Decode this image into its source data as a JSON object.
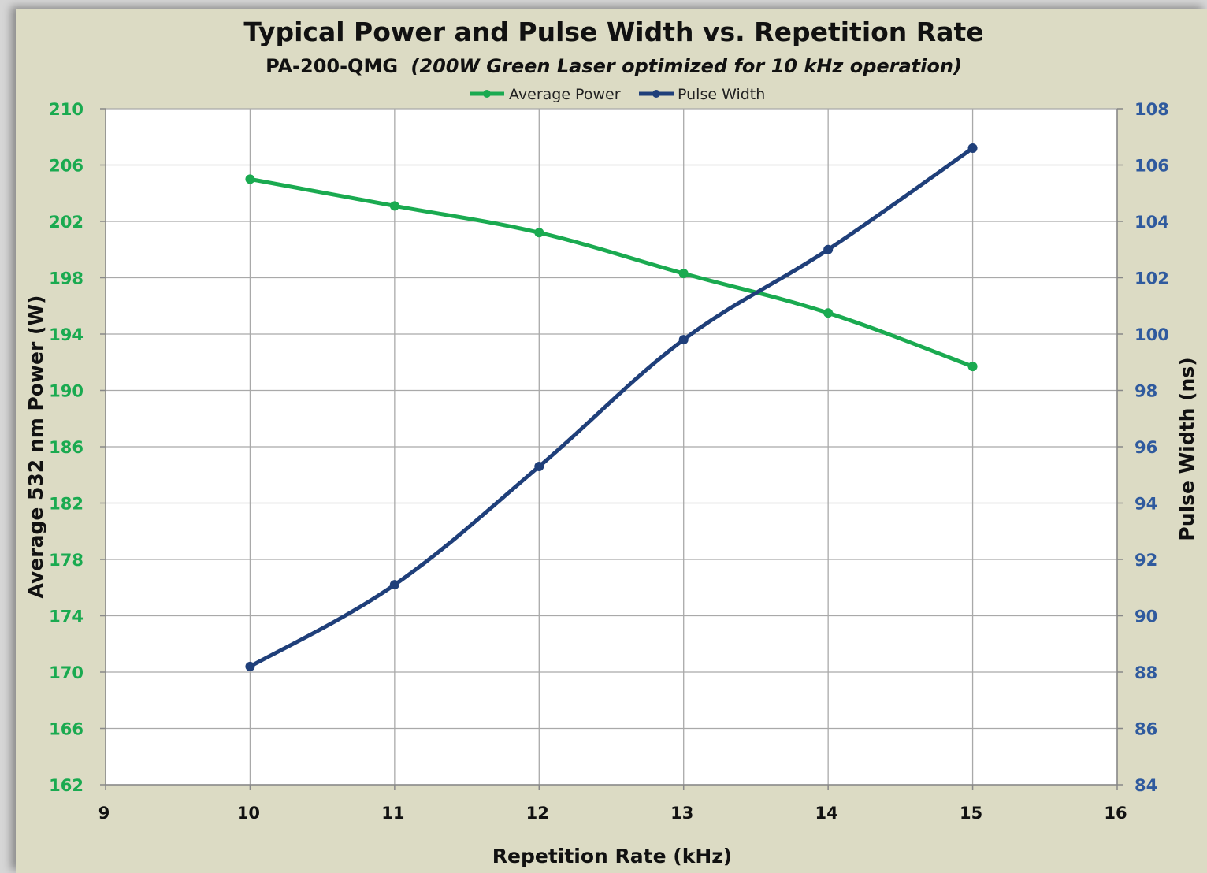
{
  "chart_data": {
    "type": "line",
    "title": "Typical Power and Pulse Width vs. Repetition Rate",
    "subtitle_model": "PA-200-QMG",
    "subtitle_desc": "(200W Green Laser optimized for 10 kHz operation)",
    "xlabel": "Repetition Rate (kHz)",
    "ylabel_left": "Average 532 nm Power (W)",
    "ylabel_right": "Pulse Width (ns)",
    "xlim": [
      9,
      16
    ],
    "ylim_left": [
      162,
      210
    ],
    "ylim_right": [
      84,
      108
    ],
    "x_ticks": [
      "9",
      "10",
      "11",
      "12",
      "13",
      "14",
      "15",
      "16"
    ],
    "y_left_ticks": [
      "162",
      "166",
      "170",
      "174",
      "178",
      "182",
      "186",
      "190",
      "194",
      "198",
      "202",
      "206",
      "210"
    ],
    "y_right_ticks": [
      "84",
      "86",
      "88",
      "90",
      "92",
      "94",
      "96",
      "98",
      "100",
      "102",
      "104",
      "106",
      "108"
    ],
    "grid": true,
    "legend_position": "top-center",
    "x": [
      10,
      11,
      12,
      13,
      14,
      15
    ],
    "series": [
      {
        "name": "Average Power",
        "axis": "left",
        "color": "#1aaa50",
        "values": [
          205.0,
          203.1,
          201.2,
          198.3,
          195.5,
          191.7
        ]
      },
      {
        "name": "Pulse Width",
        "axis": "right",
        "color": "#1f3f7a",
        "values": [
          88.2,
          91.1,
          95.3,
          99.8,
          103.0,
          106.6
        ]
      }
    ],
    "colors": {
      "left_axis_text": "#1aaa50",
      "right_axis_text": "#2f5a9e",
      "grid": "#a9a9a9",
      "plot_bg": "#ffffff",
      "frame_bg": "#dcdbc4"
    }
  }
}
